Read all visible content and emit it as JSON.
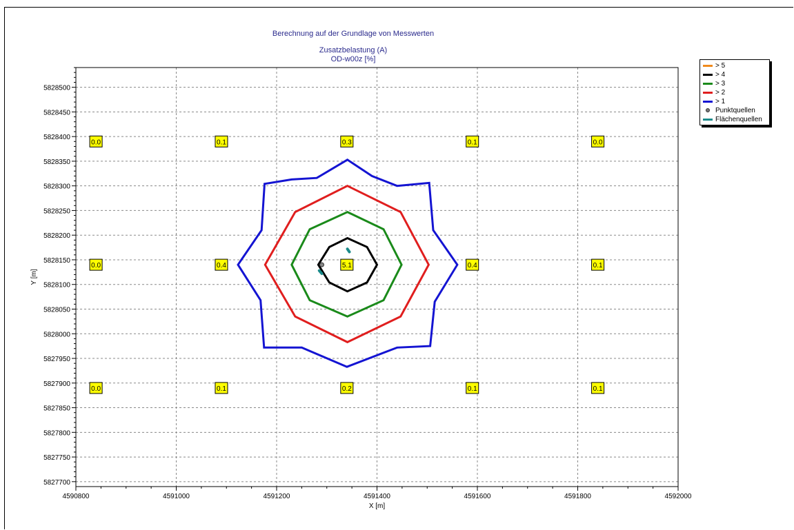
{
  "titles": {
    "line1": "Berechnung auf der Grundlage von Messwerten",
    "line2": "Zusatzbelastung (A)",
    "line3": "OD-w00z [%]"
  },
  "chart_data": {
    "type": "contour",
    "xlabel": "X [m]",
    "ylabel": "Y [m]",
    "xlim": [
      4590800,
      4592000
    ],
    "ylim": [
      5827690,
      5828540
    ],
    "x_ticks": [
      4590800,
      4591000,
      4591200,
      4591400,
      4591600,
      4591800,
      4592000
    ],
    "x_tick_labels": [
      "4590800",
      "4591000",
      "4591200",
      "4591400",
      "4591600",
      "4591800",
      "4592000"
    ],
    "y_ticks": [
      5827700,
      5827750,
      5827800,
      5827850,
      5827900,
      5827950,
      5828000,
      5828050,
      5828100,
      5828150,
      5828200,
      5828250,
      5828300,
      5828350,
      5828400,
      5828450,
      5828500
    ],
    "y_tick_labels": [
      "5827700",
      "5827750",
      "5827800",
      "5827850",
      "5827900",
      "5827950",
      "5828000",
      "5828050",
      "5828100",
      "5828150",
      "5828200",
      "5828250",
      "5828300",
      "5828350",
      "5828400",
      "5828450",
      "5828500"
    ],
    "grid": true,
    "legend_position": "top-right, outside plot",
    "legend": [
      {
        "label": "> 5",
        "color": "#f08a1c",
        "kind": "line"
      },
      {
        "label": "> 4",
        "color": "#000000",
        "kind": "line"
      },
      {
        "label": "> 3",
        "color": "#1a8a1a",
        "kind": "line"
      },
      {
        "label": "> 2",
        "color": "#e01e1e",
        "kind": "line"
      },
      {
        "label": "> 1",
        "color": "#1414d2",
        "kind": "line"
      },
      {
        "label": "Punktquellen",
        "color": "#808080",
        "kind": "point"
      },
      {
        "label": "Flächenquellen",
        "color": "#1a8a8a",
        "kind": "line"
      }
    ],
    "contours": [
      {
        "level": "> 1",
        "color": "#1414d2",
        "points": [
          [
            4591341,
            5828353
          ],
          [
            4591390,
            5828320
          ],
          [
            4591440,
            5828300
          ],
          [
            4591504,
            5828306
          ],
          [
            4591512,
            5828210
          ],
          [
            4591560,
            5828140
          ],
          [
            4591515,
            5828065
          ],
          [
            4591506,
            5827975
          ],
          [
            4591440,
            5827972
          ],
          [
            4591340,
            5827933
          ],
          [
            4591250,
            5827972
          ],
          [
            4591175,
            5827972
          ],
          [
            4591168,
            5828068
          ],
          [
            4591123,
            5828140
          ],
          [
            4591170,
            5828210
          ],
          [
            4591176,
            5828304
          ],
          [
            4591230,
            5828313
          ],
          [
            4591280,
            5828316
          ]
        ]
      },
      {
        "level": "> 2",
        "color": "#e01e1e",
        "points": [
          [
            4591341,
            5828300
          ],
          [
            4591447,
            5828247
          ],
          [
            4591503,
            5828140
          ],
          [
            4591447,
            5828035
          ],
          [
            4591341,
            5827983
          ],
          [
            4591237,
            5828035
          ],
          [
            4591177,
            5828140
          ],
          [
            4591237,
            5828247
          ]
        ]
      },
      {
        "level": "> 3",
        "color": "#1a8a1a",
        "points": [
          [
            4591341,
            5828247
          ],
          [
            4591413,
            5828212
          ],
          [
            4591449,
            5828140
          ],
          [
            4591413,
            5828068
          ],
          [
            4591341,
            5828035
          ],
          [
            4591266,
            5828068
          ],
          [
            4591230,
            5828140
          ],
          [
            4591266,
            5828212
          ]
        ]
      },
      {
        "level": "> 4",
        "color": "#000000",
        "points": [
          [
            4591341,
            5828194
          ],
          [
            4591380,
            5828176
          ],
          [
            4591400,
            5828140
          ],
          [
            4591380,
            5828104
          ],
          [
            4591341,
            5828086
          ],
          [
            4591305,
            5828104
          ],
          [
            4591283,
            5828140
          ],
          [
            4591305,
            5828176
          ]
        ]
      }
    ],
    "point_sources": [
      [
        4591290,
        5828140
      ]
    ],
    "area_sources": [
      [
        [
          4591341,
          5828172
        ],
        [
          4591345,
          5828166
        ]
      ],
      [
        [
          4591285,
          5828128
        ],
        [
          4591290,
          5828122
        ]
      ]
    ],
    "grid_values": [
      {
        "x": 4590840,
        "y": 5828390,
        "value": "0.0"
      },
      {
        "x": 4591090,
        "y": 5828390,
        "value": "0.1"
      },
      {
        "x": 4591340,
        "y": 5828390,
        "value": "0.3"
      },
      {
        "x": 4591590,
        "y": 5828390,
        "value": "0.1"
      },
      {
        "x": 4591840,
        "y": 5828390,
        "value": "0.0"
      },
      {
        "x": 4590840,
        "y": 5828140,
        "value": "0.0"
      },
      {
        "x": 4591090,
        "y": 5828140,
        "value": "0.4"
      },
      {
        "x": 4591340,
        "y": 5828140,
        "value": "5.1"
      },
      {
        "x": 4591590,
        "y": 5828140,
        "value": "0.4"
      },
      {
        "x": 4591840,
        "y": 5828140,
        "value": "0.1"
      },
      {
        "x": 4590840,
        "y": 5827890,
        "value": "0.0"
      },
      {
        "x": 4591090,
        "y": 5827890,
        "value": "0.1"
      },
      {
        "x": 4591340,
        "y": 5827890,
        "value": "0.2"
      },
      {
        "x": 4591590,
        "y": 5827890,
        "value": "0.1"
      },
      {
        "x": 4591840,
        "y": 5827890,
        "value": "0.1"
      }
    ]
  }
}
